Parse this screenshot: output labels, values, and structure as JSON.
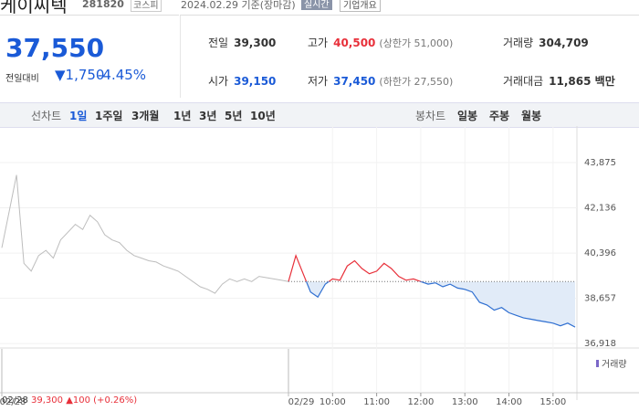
{
  "header": {
    "name": "케이씨텍",
    "code": "281820",
    "market": "코스피",
    "date": "2024.02.29 기준(장마감)",
    "realtime": "실시간",
    "company_info": "기업개요"
  },
  "price": {
    "current": "37,550",
    "change_label": "전일대비",
    "change": "▼1,750",
    "change_pct": "-4.45%"
  },
  "stats": [
    {
      "label": "전일",
      "value": "39,300"
    },
    {
      "label": "고가",
      "value": "40,500",
      "extra": "(상한가 51,000)"
    },
    {
      "label": "거래량",
      "value": "304,709"
    },
    {
      "label": "시가",
      "value": "39,150"
    },
    {
      "label": "저가",
      "value": "37,450",
      "extra": "(하한가 27,550)"
    },
    {
      "label": "거래대금",
      "value": "11,865 백만"
    }
  ],
  "tabs": {
    "line_label": "선차트",
    "line": [
      "1일",
      "1주일",
      "3개월",
      "1년",
      "3년",
      "5년",
      "10년"
    ],
    "active": 0,
    "candle_label": "봉차트",
    "candle": [
      "일봉",
      "주봉",
      "월봉"
    ]
  },
  "chart_data": {
    "type": "line",
    "ylim": [
      36780,
      44860
    ],
    "yticks": [
      {
        "value": 43875,
        "label": "43,875"
      },
      {
        "value": 42136,
        "label": "42,136"
      },
      {
        "value": 40396,
        "label": "40,396"
      },
      {
        "value": 38657,
        "label": "38,657"
      },
      {
        "value": 36918,
        "label": "36,918"
      }
    ],
    "x": [
      "09:00",
      "09:10",
      "09:20",
      "09:30",
      "09:40",
      "09:50",
      "10:00",
      "10:10",
      "10:20",
      "10:30",
      "10:40",
      "10:50",
      "11:00",
      "11:10",
      "11:20",
      "11:30",
      "11:40",
      "11:50",
      "12:00",
      "12:10",
      "12:20",
      "12:30",
      "12:40",
      "12:50",
      "13:00",
      "13:10",
      "13:20",
      "13:30",
      "13:40",
      "13:50",
      "14:00",
      "14:10",
      "14:20",
      "14:30",
      "14:40",
      "14:50",
      "15:00",
      "15:10",
      "15:20",
      "15:30"
    ],
    "xticks": [
      "10:00",
      "11:00",
      "12:00",
      "13:00",
      "14:00",
      "15:00"
    ],
    "baseline": 39300,
    "series": [
      {
        "name": "02/28",
        "color": "#bdbdbd",
        "values": [
          40600,
          42000,
          43400,
          40000,
          39700,
          40300,
          40500,
          40200,
          40900,
          41200,
          41500,
          41300,
          41850,
          41600,
          41100,
          40900,
          40800,
          40500,
          40300,
          40200,
          40100,
          40050,
          39900,
          39800,
          39700,
          39500,
          39300,
          39100,
          39000,
          38850,
          39200,
          39400,
          39300,
          39400,
          39300,
          39500,
          39450,
          39400,
          39350,
          39300
        ]
      },
      {
        "name": "02/29",
        "up_color": "#e8303a",
        "down_color": "#2f6fd1",
        "fill": "#e1ebf8",
        "values": [
          39300,
          40300,
          39600,
          38900,
          38700,
          39200,
          39400,
          39350,
          39900,
          40100,
          39800,
          39600,
          39700,
          40000,
          39800,
          39500,
          39350,
          39400,
          39300,
          39200,
          39250,
          39100,
          39200,
          39050,
          39000,
          38900,
          38500,
          38400,
          38200,
          38300,
          38100,
          38000,
          37900,
          37850,
          37800,
          37750,
          37700,
          37600,
          37700,
          37550
        ]
      }
    ],
    "grid": true,
    "volume_legend": "거래량"
  },
  "footer": {
    "date": "02/28",
    "close": "39,300",
    "change": "▲100 (+0.26%)"
  }
}
